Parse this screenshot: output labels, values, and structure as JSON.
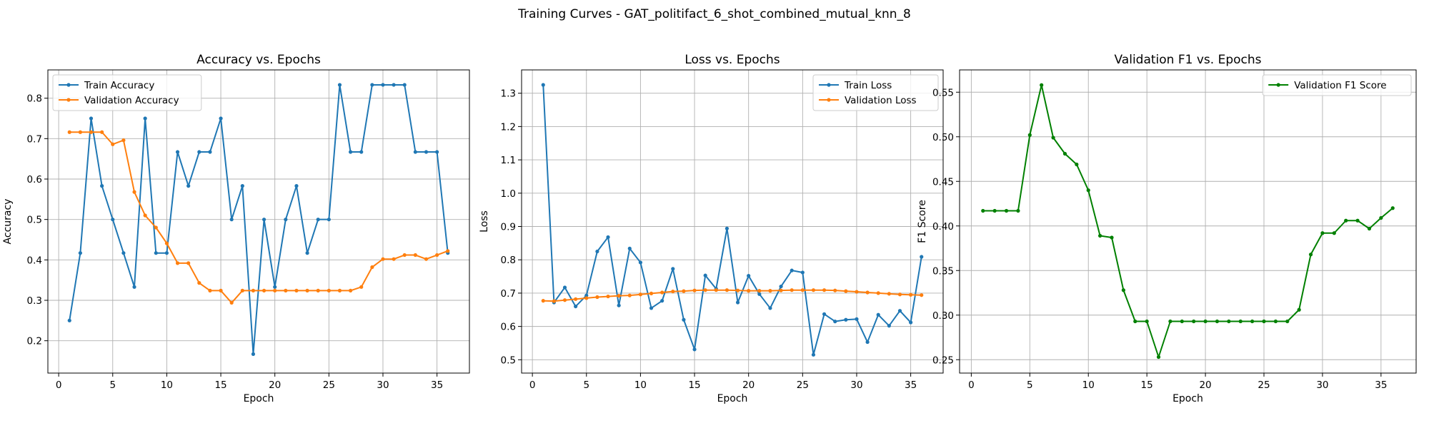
{
  "figure": {
    "suptitle": "Training Curves - GAT_politifact_6_shot_combined_mutual_knn_8"
  },
  "colors": {
    "train": "#1f77b4",
    "validation": "#ff7f0e",
    "f1": "#008000"
  },
  "chart_data": [
    {
      "type": "line",
      "title": "Accuracy vs. Epochs",
      "xlabel": "Epoch",
      "ylabel": "Accuracy",
      "xlim": [
        -1,
        38
      ],
      "ylim": [
        0.12,
        0.87
      ],
      "xticks": [
        0,
        5,
        10,
        15,
        20,
        25,
        30,
        35
      ],
      "yticks": [
        0.2,
        0.3,
        0.4,
        0.5,
        0.6,
        0.7,
        0.8
      ],
      "ytick_labels": [
        "0.2",
        "0.3",
        "0.4",
        "0.5",
        "0.6",
        "0.7",
        "0.8"
      ],
      "grid": true,
      "legend_position": "upper left",
      "x": [
        1,
        2,
        3,
        4,
        5,
        6,
        7,
        8,
        9,
        10,
        11,
        12,
        13,
        14,
        15,
        16,
        17,
        18,
        19,
        20,
        21,
        22,
        23,
        24,
        25,
        26,
        27,
        28,
        29,
        30,
        31,
        32,
        33,
        34,
        35,
        36
      ],
      "series": [
        {
          "name": "Train Accuracy",
          "color": "#1f77b4",
          "values": [
            0.25,
            0.417,
            0.75,
            0.583,
            0.5,
            0.417,
            0.333,
            0.75,
            0.417,
            0.417,
            0.667,
            0.583,
            0.667,
            0.667,
            0.75,
            0.5,
            0.583,
            0.167,
            0.5,
            0.333,
            0.5,
            0.583,
            0.417,
            0.5,
            0.5,
            0.833,
            0.667,
            0.667,
            0.833,
            0.833,
            0.833,
            0.833,
            0.667,
            0.667,
            0.667,
            0.417
          ]
        },
        {
          "name": "Validation Accuracy",
          "color": "#ff7f0e",
          "values": [
            0.716,
            0.716,
            0.716,
            0.716,
            0.686,
            0.696,
            0.568,
            0.51,
            0.48,
            0.441,
            0.392,
            0.392,
            0.343,
            0.324,
            0.324,
            0.294,
            0.324,
            0.324,
            0.324,
            0.324,
            0.324,
            0.324,
            0.324,
            0.324,
            0.324,
            0.324,
            0.324,
            0.333,
            0.382,
            0.402,
            0.402,
            0.412,
            0.412,
            0.402,
            0.412,
            0.422
          ]
        }
      ]
    },
    {
      "type": "line",
      "title": "Loss vs. Epochs",
      "xlabel": "Epoch",
      "ylabel": "Loss",
      "xlim": [
        -1,
        38
      ],
      "ylim": [
        0.46,
        1.37
      ],
      "xticks": [
        0,
        5,
        10,
        15,
        20,
        25,
        30,
        35
      ],
      "yticks": [
        0.5,
        0.6,
        0.7,
        0.8,
        0.9,
        1.0,
        1.1,
        1.2,
        1.3
      ],
      "ytick_labels": [
        "0.5",
        "0.6",
        "0.7",
        "0.8",
        "0.9",
        "1.0",
        "1.1",
        "1.2",
        "1.3"
      ],
      "grid": true,
      "legend_position": "upper right",
      "x": [
        1,
        2,
        3,
        4,
        5,
        6,
        7,
        8,
        9,
        10,
        11,
        12,
        13,
        14,
        15,
        16,
        17,
        18,
        19,
        20,
        21,
        22,
        23,
        24,
        25,
        26,
        27,
        28,
        29,
        30,
        31,
        32,
        33,
        34,
        35,
        36
      ],
      "series": [
        {
          "name": "Train Loss",
          "color": "#1f77b4",
          "values": [
            1.325,
            0.672,
            0.717,
            0.66,
            0.693,
            0.825,
            0.868,
            0.663,
            0.834,
            0.792,
            0.655,
            0.677,
            0.773,
            0.62,
            0.531,
            0.753,
            0.713,
            0.894,
            0.672,
            0.752,
            0.697,
            0.655,
            0.72,
            0.768,
            0.762,
            0.515,
            0.637,
            0.615,
            0.62,
            0.622,
            0.553,
            0.635,
            0.602,
            0.647,
            0.612,
            0.809
          ]
        },
        {
          "name": "Validation Loss",
          "color": "#ff7f0e",
          "values": [
            0.677,
            0.676,
            0.679,
            0.682,
            0.685,
            0.688,
            0.69,
            0.692,
            0.693,
            0.696,
            0.699,
            0.702,
            0.705,
            0.706,
            0.708,
            0.709,
            0.709,
            0.709,
            0.708,
            0.707,
            0.707,
            0.707,
            0.708,
            0.709,
            0.709,
            0.709,
            0.709,
            0.708,
            0.706,
            0.704,
            0.702,
            0.7,
            0.698,
            0.696,
            0.695,
            0.694
          ]
        }
      ]
    },
    {
      "type": "line",
      "title": "Validation F1 vs. Epochs",
      "xlabel": "Epoch",
      "ylabel": "F1 Score",
      "xlim": [
        -1,
        38
      ],
      "ylim": [
        0.235,
        0.575
      ],
      "xticks": [
        0,
        5,
        10,
        15,
        20,
        25,
        30,
        35
      ],
      "yticks": [
        0.25,
        0.3,
        0.35,
        0.4,
        0.45,
        0.5,
        0.55
      ],
      "ytick_labels": [
        "0.25",
        "0.30",
        "0.35",
        "0.40",
        "0.45",
        "0.50",
        "0.55"
      ],
      "grid": true,
      "legend_position": "upper right",
      "x": [
        1,
        2,
        3,
        4,
        5,
        6,
        7,
        8,
        9,
        10,
        11,
        12,
        13,
        14,
        15,
        16,
        17,
        18,
        19,
        20,
        21,
        22,
        23,
        24,
        25,
        26,
        27,
        28,
        29,
        30,
        31,
        32,
        33,
        34,
        35,
        36
      ],
      "series": [
        {
          "name": "Validation F1 Score",
          "color": "#008000",
          "values": [
            0.417,
            0.417,
            0.417,
            0.417,
            0.502,
            0.558,
            0.499,
            0.481,
            0.469,
            0.44,
            0.389,
            0.387,
            0.328,
            0.293,
            0.293,
            0.253,
            0.293,
            0.293,
            0.293,
            0.293,
            0.293,
            0.293,
            0.293,
            0.293,
            0.293,
            0.293,
            0.293,
            0.306,
            0.368,
            0.392,
            0.392,
            0.406,
            0.406,
            0.397,
            0.409,
            0.42
          ]
        }
      ]
    }
  ]
}
